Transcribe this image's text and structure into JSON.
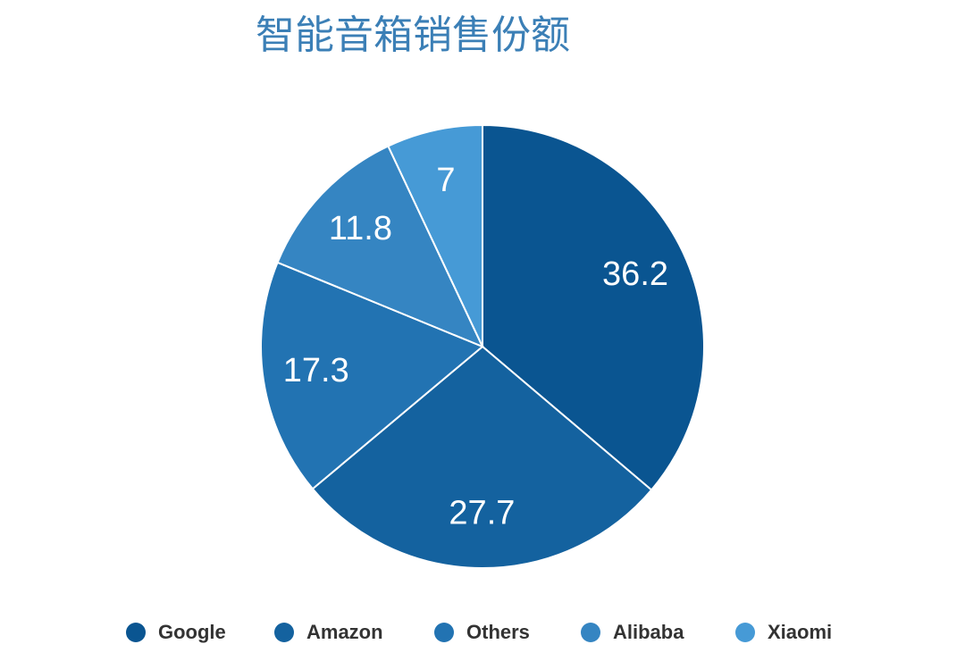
{
  "chart_data": {
    "type": "pie",
    "title": "智能音箱销售份额",
    "categories": [
      "Google",
      "Amazon",
      "Others",
      "Alibaba",
      "Xiaomi"
    ],
    "values": [
      36.2,
      27.7,
      17.3,
      11.8,
      7
    ],
    "colors": [
      "#0a5591",
      "#14629f",
      "#2273b2",
      "#3585c2",
      "#469ad6"
    ],
    "legend": "bottom"
  }
}
